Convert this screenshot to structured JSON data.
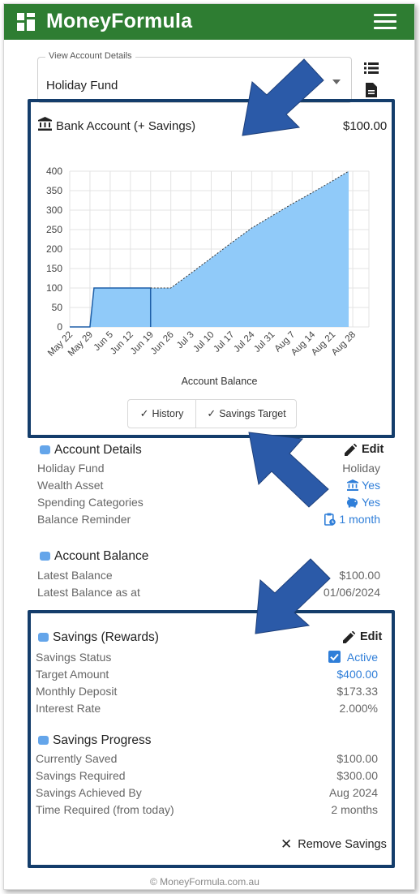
{
  "app": {
    "title": "MoneyFormula",
    "brand_color": "#2e7d32",
    "logo_icon": "grid-logo-icon"
  },
  "account_select": {
    "label": "View Account Details",
    "value": "Holiday Fund"
  },
  "bank_card": {
    "title": "Bank Account (+ Savings)",
    "amount": "$100.00"
  },
  "chart_data": {
    "type": "area",
    "xlabel": "Account Balance",
    "categories": [
      "May 22",
      "May 29",
      "Jun 5",
      "Jun 12",
      "Jun 19",
      "Jun 26",
      "Jul 3",
      "Jul 10",
      "Jul 17",
      "Jul 24",
      "Jul 31",
      "Aug 7",
      "Aug 14",
      "Aug 21",
      "Aug 28"
    ],
    "y_ticks": [
      0,
      50,
      100,
      150,
      200,
      250,
      300,
      350,
      400
    ],
    "ylim": [
      0,
      400
    ],
    "grid": true,
    "series": [
      {
        "values": [
          0,
          0,
          100,
          100,
          100,
          100,
          100,
          138,
          177,
          216,
          254,
          285,
          316,
          345,
          375,
          400
        ],
        "x": [
          0,
          1,
          1.2,
          2,
          3,
          4,
          5,
          6,
          7,
          8,
          9,
          10,
          11,
          12,
          13,
          13.8
        ]
      }
    ],
    "fill_color": "#90caf9",
    "history_color": "#1e5fa8"
  },
  "toggles": [
    {
      "label": "History"
    },
    {
      "label": "Savings Target"
    }
  ],
  "account_details": {
    "title": "Account Details",
    "edit_label": "Edit",
    "rows": [
      {
        "label": "Holiday Fund",
        "value": "Holiday"
      },
      {
        "label": "Wealth Asset",
        "value": "Yes"
      },
      {
        "label": "Spending Categories",
        "value": "Yes"
      },
      {
        "label": "Balance Reminder",
        "value": "1 month"
      }
    ]
  },
  "account_balance": {
    "title": "Account Balance",
    "rows": [
      {
        "label": "Latest Balance",
        "value": "$100.00"
      },
      {
        "label": "Latest Balance as at",
        "value": "01/06/2024"
      }
    ]
  },
  "savings": {
    "title": "Savings (Rewards)",
    "edit_label": "Edit",
    "rows": [
      {
        "label": "Savings Status",
        "value": "Active"
      },
      {
        "label": "Target Amount",
        "value": "$400.00"
      },
      {
        "label": "Monthly Deposit",
        "value": "$173.33"
      },
      {
        "label": "Interest Rate",
        "value": "2.000%"
      }
    ]
  },
  "savings_progress": {
    "title": "Savings Progress",
    "rows": [
      {
        "label": "Currently Saved",
        "value": "$100.00"
      },
      {
        "label": "Savings Required",
        "value": "$300.00"
      },
      {
        "label": "Savings Achieved By",
        "value": "Aug 2024"
      },
      {
        "label": "Time Required (from today)",
        "value": "2 months"
      }
    ]
  },
  "remove_savings_label": "Remove Savings",
  "footer": "© MoneyFormula.com.au",
  "colors": {
    "highlight_box": "#143d6b",
    "arrow": "#2b5aa8",
    "link": "#2f7ed8",
    "section_icon": "#64a5ea"
  }
}
